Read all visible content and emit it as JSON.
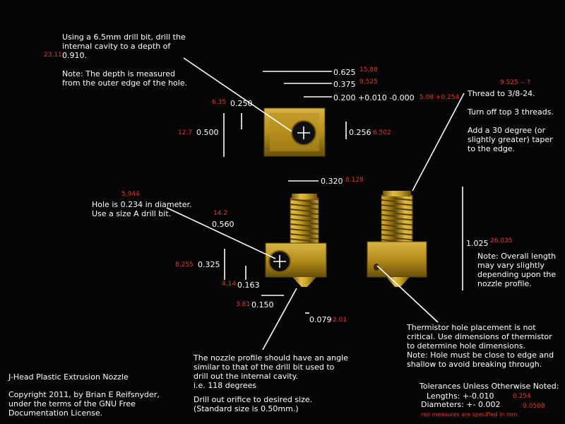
{
  "notes": {
    "drill_cavity": "Using a 6.5mm drill bit, drill the\ninternal cavity to a depth of\n0.910.\n\nNote:  The depth is measured\nfrom the outer edge of the hole.",
    "thread": "Thread to 3/8-24.\n\nTurn off top 3 threads.\n\nAdd a 30 degree (or\nslightly greater) taper\nto the edge.",
    "hole": "Hole is 0.234 in diameter.\nUse a size A drill bit.",
    "overall_length": "Note:  Overall length\nmay vary slightly\ndepending upon the\nnozzle profile.",
    "thermistor": "Thermistor hole placement is not\ncritical.  Use dimensions of thermistor\nto determine hole dimensions.\nNote:  Hole must be close to edge and\nshallow to avoid breaking through.",
    "nozzle_profile": "The nozzle profile should have an angle\nsimilar to that of the drill bit used to\ndrill out the internal cavity.\ni.e.  118 degrees",
    "orifice": "Drill out orifice to desired size.\n(Standard size is 0.50mm.)"
  },
  "title": {
    "name": "J-Head Plastic Extrusion Nozzle",
    "copyright": "Copyright 2011, by Brian E Reifsnyder,\nunder the terms of the GNU Free\nDocumentation License."
  },
  "tolerances": {
    "heading": "Tolerances Unless Otherwise Noted:",
    "lengths_label": "Lengths:  +-0.010",
    "lengths_mm": "0.254",
    "diameters_label": "Diameters:  +- 0.002",
    "diameters_mm": "0.0508",
    "footer": "red measures are specified in mm"
  },
  "dimensions": {
    "d_0625": "0.625",
    "d_0625_mm": "15,88",
    "d_0375": "0.375",
    "d_0375_mm": "9,525",
    "d_0200": "0.200 +0.010 -0.000",
    "d_0200_mm": "5.08 +0.254",
    "d_0250": "0.250",
    "d_0250_mm": "6.35",
    "d_0500": "0.500",
    "d_0500_mm": "12.7",
    "d_0256": "0.256",
    "d_0256_mm": "6.502",
    "d_0320": "0.320",
    "d_0320_mm": "8.128",
    "d_0560": "0.560",
    "d_0560_mm": "14.2",
    "d_0325": "0.325",
    "d_0325_mm": "8,255",
    "d_0163": "0.163",
    "d_0163_mm": "4.14",
    "d_0150": "0.150",
    "d_0150_mm": "3.81",
    "d_0079": "0.079",
    "d_0079_mm": "2.01",
    "d_1025": "1.025",
    "d_1025_mm": "26,035",
    "cavity_mm": "23,11",
    "hole_mm": "5,944",
    "thread_mm": "9.525 -- ?"
  },
  "colors": {
    "background": "#050505",
    "brass": "#c9a227",
    "brass_dark": "#8a6a12",
    "metric": "#e23a2a",
    "line": "#ffffff"
  }
}
